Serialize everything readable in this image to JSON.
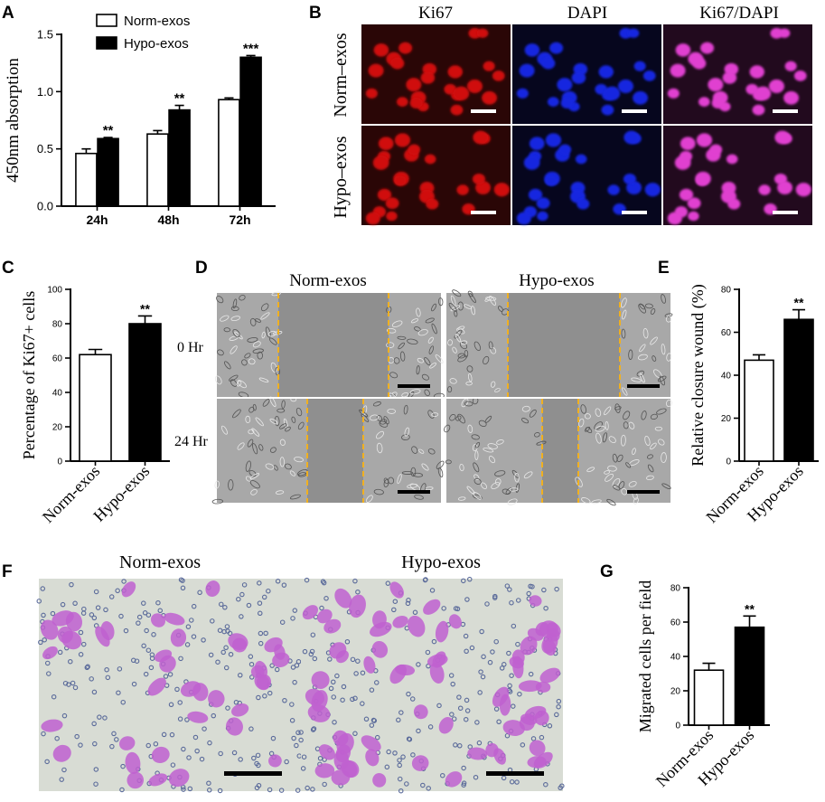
{
  "panels": {
    "A": "A",
    "B": "B",
    "C": "C",
    "D": "D",
    "E": "E",
    "F": "F",
    "G": "G"
  },
  "colors": {
    "norm_fill": "#ffffff",
    "hypo_fill": "#000000",
    "red_stain": "#d01010",
    "blue_stain": "#1828e0",
    "merge_stain": "#e040d0",
    "scale_bar_fluor": "#ffffff",
    "scale_bar_bright": "#000000",
    "wound_edge": "#f0b020",
    "phase_bg": "#a8a8a8",
    "transwell_bg": "#d8dcd4",
    "transwell_cell": "#c060d0"
  },
  "microscopy": {
    "B": {
      "columns": [
        "Ki67",
        "DAPI",
        "Ki67/DAPI"
      ],
      "rows": [
        "Norm–exos",
        "Hypo–exos"
      ]
    },
    "D": {
      "columns": [
        "Norm-exos",
        "Hypo-exos"
      ],
      "rows": [
        "0 Hr",
        "24 Hr"
      ]
    },
    "F": {
      "columns": [
        "Norm-exos",
        "Hypo-exos"
      ]
    }
  },
  "chart_data": [
    {
      "panel": "A",
      "type": "bar",
      "categories": [
        "24h",
        "48h",
        "72h"
      ],
      "series": [
        {
          "name": "Norm-exos",
          "values": [
            0.46,
            0.63,
            0.93
          ],
          "errors": [
            0.04,
            0.03,
            0.015
          ]
        },
        {
          "name": "Hypo-exos",
          "values": [
            0.59,
            0.84,
            1.3
          ],
          "errors": [
            0.01,
            0.04,
            0.015
          ]
        }
      ],
      "significance": [
        "**",
        "**",
        "***"
      ],
      "ylabel": "450nm absorption",
      "ylim": [
        0,
        1.5
      ],
      "yticks": [
        "0.0",
        "0.5",
        "1.0",
        "1.5"
      ],
      "legend": "top-left"
    },
    {
      "panel": "C",
      "type": "bar",
      "categories": [
        "Norm-exos",
        "Hypo-exos"
      ],
      "values": [
        62,
        80
      ],
      "errors": [
        3,
        4.5
      ],
      "significance": [
        "",
        "**"
      ],
      "ylabel": "Percentage of Ki67+ cells",
      "ylim": [
        0,
        100
      ],
      "yticks": [
        "0",
        "20",
        "40",
        "60",
        "80",
        "100"
      ]
    },
    {
      "panel": "E",
      "type": "bar",
      "categories": [
        "Norm-exos",
        "Hypo-exos"
      ],
      "values": [
        47,
        66
      ],
      "errors": [
        2.5,
        4.5
      ],
      "significance": [
        "",
        "**"
      ],
      "ylabel": "Relative closure wound (%)",
      "ylim": [
        0,
        80
      ],
      "yticks": [
        "0",
        "20",
        "40",
        "60",
        "80"
      ]
    },
    {
      "panel": "G",
      "type": "bar",
      "categories": [
        "Norm-exos",
        "Hypo-exos"
      ],
      "values": [
        32,
        57
      ],
      "errors": [
        4,
        6.5
      ],
      "significance": [
        "",
        "**"
      ],
      "ylabel": "Migrated cells per field",
      "ylim": [
        0,
        80
      ],
      "yticks": [
        "0",
        "20",
        "40",
        "60",
        "80"
      ]
    }
  ]
}
